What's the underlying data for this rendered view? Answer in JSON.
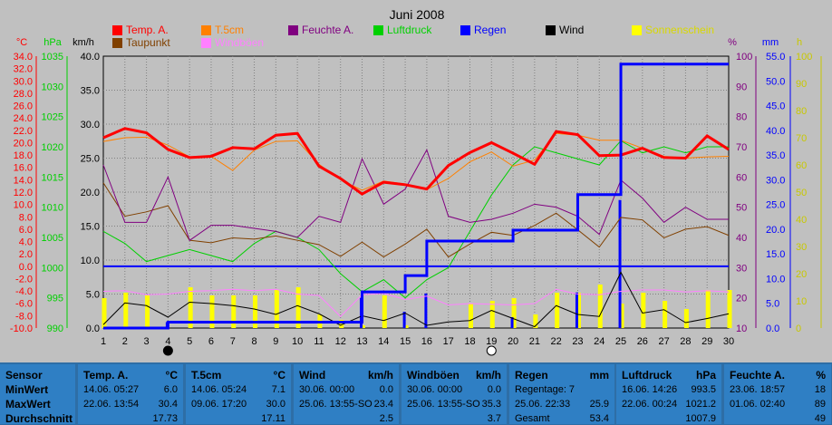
{
  "title": "Juni 2008",
  "legend": [
    {
      "label": "Temp. A.",
      "color": "#ff0000"
    },
    {
      "label": "T.5cm",
      "color": "#ff8000"
    },
    {
      "label": "Feuchte A.",
      "color": "#800080"
    },
    {
      "label": "Luftdruck",
      "color": "#00d000"
    },
    {
      "label": "Regen",
      "color": "#0000ff"
    },
    {
      "label": "Wind",
      "color": "#000000"
    },
    {
      "label": "Sonnenschein",
      "color": "#ffff00"
    },
    {
      "label": "Taupunkt",
      "color": "#804000"
    },
    {
      "label": "Windböen",
      "color": "#ff80ff"
    }
  ],
  "axes": {
    "temp_unit": "°C",
    "hpa_unit": "hPa",
    "kmh_unit": "km/h",
    "pct_unit": "%",
    "mm_unit": "mm",
    "h_unit": "h",
    "temp_ticks": [
      "34.0",
      "32.0",
      "30.0",
      "28.0",
      "26.0",
      "24.0",
      "22.0",
      "20.0",
      "18.0",
      "16.0",
      "14.0",
      "12.0",
      "10.0",
      "8.0",
      "6.0",
      "4.0",
      "2.0",
      "0.0",
      "-2.0",
      "-4.0",
      "-6.0",
      "-8.0",
      "-10.0"
    ],
    "hpa_ticks": [
      "1035",
      "1030",
      "1025",
      "1020",
      "1015",
      "1010",
      "1005",
      "1000",
      "995",
      "990"
    ],
    "kmh_ticks": [
      "40.0",
      "35.0",
      "30.0",
      "25.0",
      "20.0",
      "15.0",
      "10.0",
      "5.0",
      "0.0"
    ],
    "pct_ticks": [
      "100",
      "90",
      "80",
      "70",
      "60",
      "50",
      "40",
      "30",
      "20",
      "10"
    ],
    "mm_ticks": [
      "55.0",
      "50.0",
      "45.0",
      "40.0",
      "35.0",
      "30.0",
      "25.0",
      "20.0",
      "15.0",
      "10.0",
      "5.0",
      "0.0"
    ],
    "h_ticks": [
      "100",
      "90",
      "80",
      "70",
      "60",
      "50",
      "40",
      "30",
      "20",
      "10",
      "0"
    ],
    "days": [
      "1",
      "2",
      "3",
      "4",
      "5",
      "6",
      "7",
      "8",
      "9",
      "10",
      "11",
      "12",
      "13",
      "14",
      "15",
      "16",
      "17",
      "18",
      "19",
      "20",
      "21",
      "22",
      "23",
      "24",
      "25",
      "26",
      "27",
      "28",
      "29",
      "30"
    ]
  },
  "chart_data": {
    "type": "line",
    "title": "Juni 2008",
    "x": [
      1,
      2,
      3,
      4,
      5,
      6,
      7,
      8,
      9,
      10,
      11,
      12,
      13,
      14,
      15,
      16,
      17,
      18,
      19,
      20,
      21,
      22,
      23,
      24,
      25,
      26,
      27,
      28,
      29,
      30
    ],
    "series": [
      {
        "name": "Temp. A.",
        "axis": "°C",
        "color": "#ff0000",
        "values": [
          20.8,
          22.3,
          21.6,
          18.9,
          17.6,
          17.8,
          19.2,
          19.0,
          21.2,
          21.5,
          16.2,
          14.2,
          11.7,
          13.6,
          13.2,
          12.5,
          16.3,
          18.4,
          20.0,
          18.3,
          16.5,
          21.8,
          21.3,
          17.9,
          18.0,
          19.1,
          17.6,
          17.5,
          21.1,
          18.9
        ]
      },
      {
        "name": "T.5cm",
        "axis": "°C",
        "color": "#ff8000",
        "values": [
          20.2,
          20.8,
          20.9,
          19.6,
          17.7,
          17.8,
          15.5,
          18.8,
          20.2,
          20.3,
          16.5,
          14.0,
          12.3,
          13.8,
          13.3,
          12.4,
          14.2,
          16.9,
          18.5,
          16.2,
          17.2,
          21.5,
          21.2,
          20.4,
          20.4,
          19.1,
          17.8,
          17.5,
          17.7,
          17.8
        ]
      },
      {
        "name": "Taupunkt",
        "axis": "°C",
        "color": "#804000",
        "values": [
          13.5,
          8.1,
          8.8,
          9.8,
          4.2,
          3.8,
          4.6,
          4.4,
          4.9,
          4.2,
          3.5,
          1.6,
          3.9,
          1.5,
          3.6,
          6.0,
          1.5,
          3.6,
          5.5,
          5.0,
          6.6,
          8.6,
          5.9,
          3.1,
          7.9,
          7.5,
          4.6,
          6.0,
          6.4,
          5.0
        ]
      },
      {
        "name": "Feuchte A.",
        "axis": "%",
        "color": "#800080",
        "values": [
          64,
          45,
          45,
          60,
          39,
          44,
          44,
          43,
          42,
          40,
          47,
          45,
          66,
          51,
          56,
          69,
          47,
          45,
          46,
          48,
          51,
          50,
          47,
          41,
          59,
          53,
          45,
          50,
          46,
          46
        ]
      },
      {
        "name": "Luftdruck",
        "axis": "hPa",
        "color": "#00d000",
        "values": [
          1006,
          1004,
          1001,
          1002,
          1003,
          1002,
          1001,
          1004,
          1006,
          1005,
          1003,
          999,
          996,
          998,
          995,
          998,
          1000,
          1006,
          1012,
          1017,
          1020,
          1019,
          1018,
          1017,
          1021,
          1019,
          1020,
          1019,
          1020,
          1020
        ]
      },
      {
        "name": "Regen",
        "axis": "mm",
        "color": "#0000ff",
        "values": [
          0,
          0,
          0,
          1.2,
          1.2,
          1.2,
          1.2,
          1.2,
          1.2,
          1.2,
          1.2,
          1.2,
          7.3,
          7.3,
          10.6,
          17.6,
          17.6,
          17.6,
          17.6,
          19.8,
          19.8,
          19.8,
          27.0,
          27.0,
          53.4,
          53.4,
          53.4,
          53.4,
          53.4,
          53.4
        ]
      },
      {
        "name": "Wind",
        "axis": "km/h",
        "color": "#000000",
        "values": [
          0.5,
          3.7,
          3.3,
          1.6,
          3.8,
          3.6,
          3.3,
          2.8,
          2.0,
          3.3,
          2.1,
          0.4,
          1.8,
          1.1,
          2.2,
          0.4,
          0.9,
          1.1,
          2.6,
          1.4,
          0.2,
          3.3,
          2.0,
          1.7,
          8.2,
          2.2,
          2.7,
          0.8,
          1.4,
          2.1
        ]
      },
      {
        "name": "Windböen",
        "axis": "km/h",
        "color": "#ff80ff",
        "values": [
          5.4,
          5.5,
          4.9,
          5.0,
          5.4,
          5.5,
          5.7,
          5.5,
          5.7,
          5.0,
          4.8,
          1.7,
          4.9,
          5.1,
          4.2,
          4.7,
          3.4,
          3.6,
          3.5,
          3.4,
          3.6,
          5.7,
          5.0,
          4.9,
          5.4,
          5.6,
          5.6,
          5.3,
          5.5,
          5.3
        ]
      },
      {
        "name": "Sonnenschein",
        "axis": "h",
        "color": "#ffff00",
        "kind": "bar",
        "values": [
          11,
          13,
          12,
          0,
          15,
          12,
          12,
          12,
          14,
          15,
          5,
          3,
          1,
          12,
          1,
          0,
          0,
          9,
          10,
          11,
          5,
          13,
          13,
          16,
          9,
          13,
          10,
          7,
          14,
          14
        ]
      },
      {
        "name": "Regen (Tag)",
        "axis": "mm",
        "color": "#0000ff",
        "kind": "bar",
        "values": [
          0,
          0,
          0,
          1.2,
          0,
          0,
          0,
          0,
          0,
          0,
          0,
          0,
          6.1,
          0,
          3.3,
          7.0,
          0,
          0,
          0,
          2.2,
          0,
          0,
          7.2,
          0,
          25.9,
          0,
          0,
          0,
          0,
          0
        ]
      }
    ],
    "ranges": {
      "°C": [
        -10,
        34
      ],
      "hPa": [
        990,
        1035
      ],
      "km/h": [
        0,
        40
      ],
      "%": [
        10,
        100
      ],
      "mm": [
        0,
        55
      ],
      "h": [
        0,
        100
      ]
    },
    "reference_lines": [
      {
        "axis": "°C",
        "value": 0,
        "color": "#0000ff"
      }
    ],
    "markers": [
      {
        "x": 4,
        "symbol": "new-moon"
      },
      {
        "x": 19,
        "symbol": "full-moon"
      }
    ],
    "grid": true,
    "legend_position": "top"
  },
  "stats": {
    "row_labels": {
      "sensor": "Sensor",
      "min": "MinWert",
      "max": "MaxWert",
      "avg": "Durchschnitt"
    },
    "columns": [
      {
        "name": "Temp. A.",
        "unit": "°C",
        "min_time": "14.06.  05:27",
        "min": "6.0",
        "max_time": "22.06.  13:54",
        "max": "30.4",
        "avg": "17.73"
      },
      {
        "name": "T.5cm",
        "unit": "°C",
        "min_time": "14.06.  05:24",
        "min": "7.1",
        "max_time": "09.06.  17:20",
        "max": "30.0",
        "avg": "17.11"
      },
      {
        "name": "Wind",
        "unit": "km/h",
        "min_time": "30.06.  00:00",
        "min": "0.0",
        "max_time": "25.06.  13:55-SO",
        "max": "23.4",
        "avg": "2.5"
      },
      {
        "name": "Windböen",
        "unit": "km/h",
        "min_time": "30.06.  00:00",
        "min": "0.0",
        "max_time": "25.06.  13:55-SO",
        "max": "35.3",
        "avg": "3.7"
      },
      {
        "name": "Regen",
        "unit": "mm",
        "min_time": "Regentage: 7",
        "min": "",
        "max_time": "25.06.  22:33",
        "max": "25.9",
        "avg_label": "Gesamt",
        "avg": "53.4"
      },
      {
        "name": "Luftdruck",
        "unit": "hPa",
        "min_time": "16.06.  14:26",
        "min": "993.5",
        "max_time": "22.06.  00:24",
        "max": "1021.2",
        "avg": "1007.9"
      },
      {
        "name": "Feuchte A.",
        "unit": "%",
        "min_time": "23.06.  18:57",
        "min": "18",
        "max_time": "01.06.  02:40",
        "max": "89",
        "avg": "49"
      }
    ]
  }
}
